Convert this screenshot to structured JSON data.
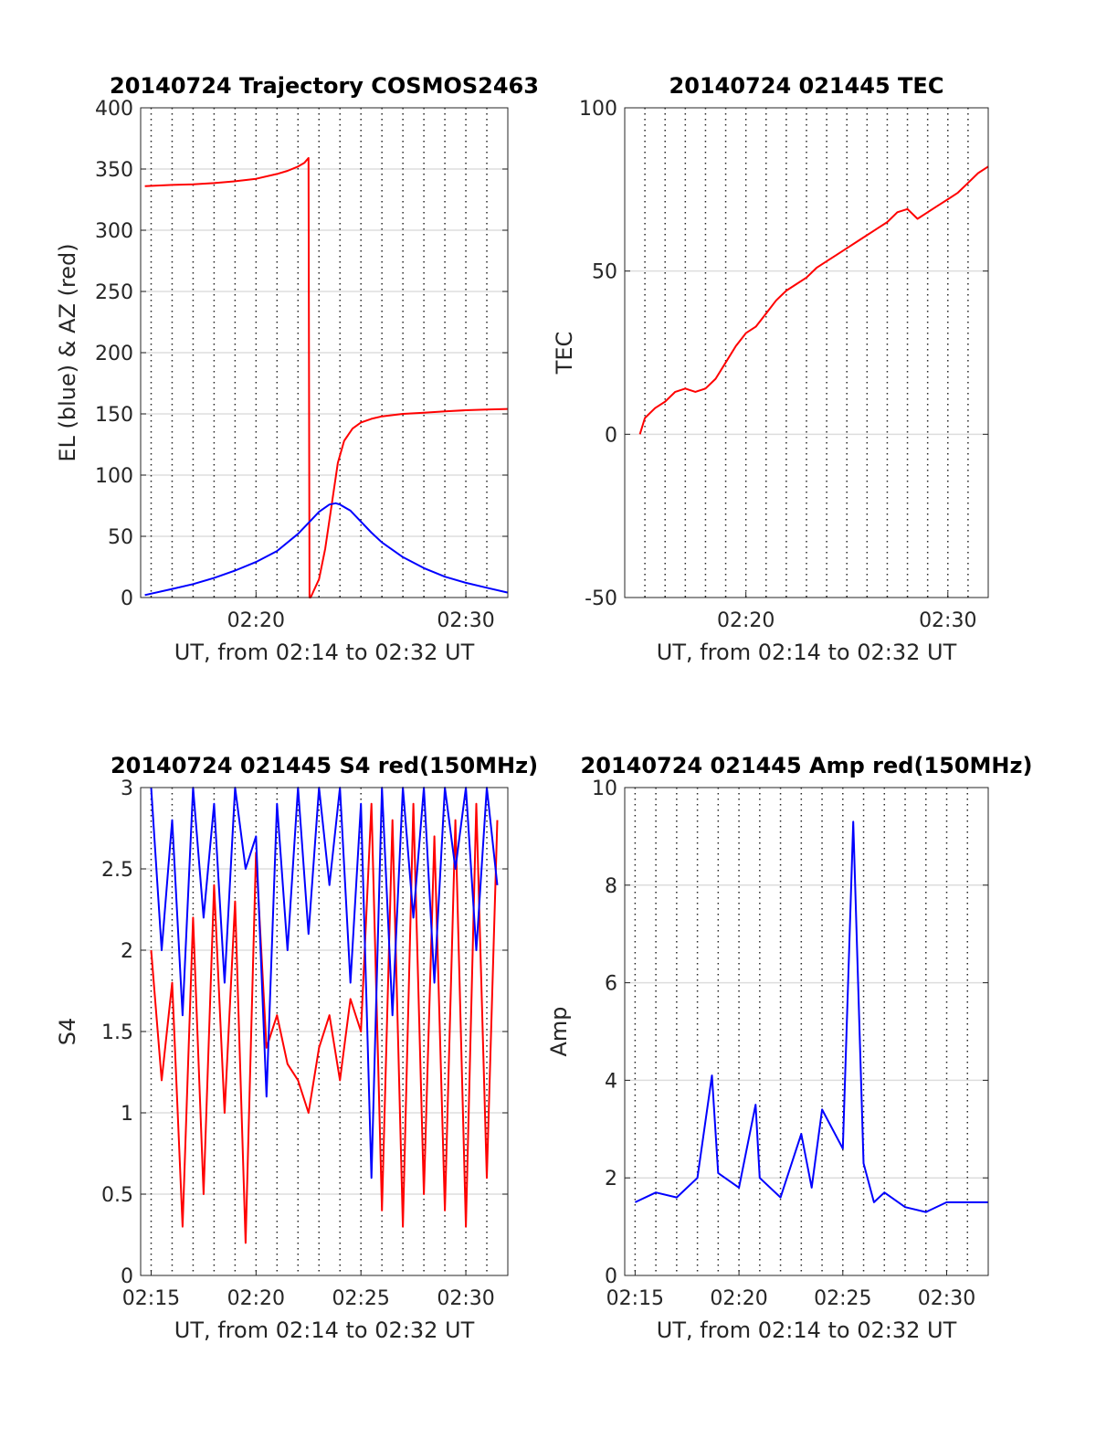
{
  "figure": {
    "background": "#ffffff"
  },
  "colors": {
    "red": "#ff0000",
    "blue": "#0000ff",
    "axis": "#262626",
    "text": "#262626",
    "grid": "#262626",
    "hgrid": "#dddddd"
  },
  "chart_data": [
    {
      "type": "line",
      "title": "20140724 Trajectory COSMOS2463",
      "xlabel": "UT, from 02:14 to 02:32 UT",
      "ylabel": "EL (blue) & AZ (red)",
      "xlim": [
        14.5,
        32
      ],
      "ylim": [
        0,
        400
      ],
      "xticks": [
        {
          "v": 20,
          "label": "02:20"
        },
        {
          "v": 30,
          "label": "02:30"
        }
      ],
      "yticks": [
        {
          "v": 0,
          "label": "0"
        },
        {
          "v": 50,
          "label": "50"
        },
        {
          "v": 100,
          "label": "100"
        },
        {
          "v": 150,
          "label": "150"
        },
        {
          "v": 200,
          "label": "200"
        },
        {
          "v": 250,
          "label": "250"
        },
        {
          "v": 300,
          "label": "300"
        },
        {
          "v": 350,
          "label": "350"
        },
        {
          "v": 400,
          "label": "400"
        }
      ],
      "grid": "dotted vertical every minute",
      "series": [
        {
          "color": "#ff0000",
          "x": [
            14.7,
            16,
            17,
            18,
            19,
            20,
            21,
            21.5,
            22,
            22.3,
            22.5,
            22.55,
            22.6,
            23,
            23.3,
            23.6,
            23.9,
            24.2,
            24.6,
            25,
            25.5,
            26,
            27,
            28,
            29,
            30,
            31,
            32
          ],
          "y": [
            336,
            337,
            337.5,
            338.5,
            340,
            342,
            346,
            348.5,
            352,
            355,
            359,
            0,
            0,
            15,
            40,
            75,
            110,
            128,
            138,
            143,
            146,
            148,
            150,
            151,
            152,
            153,
            153.5,
            154
          ]
        },
        {
          "color": "#0000ff",
          "x": [
            14.7,
            16,
            17,
            18,
            19,
            20,
            21,
            22,
            22.5,
            23,
            23.5,
            23.8,
            24,
            24.5,
            25,
            25.5,
            26,
            27,
            28,
            29,
            30,
            31,
            32
          ],
          "y": [
            2,
            7,
            11,
            16,
            22,
            29,
            38,
            52,
            61,
            70,
            76,
            77,
            76,
            71,
            62,
            53,
            45,
            33,
            24,
            17,
            12,
            8,
            4
          ]
        }
      ]
    },
    {
      "type": "line",
      "title": "20140724 021445 TEC",
      "xlabel": "UT, from 02:14 to 02:32 UT",
      "ylabel": "TEC",
      "xlim": [
        14,
        32
      ],
      "ylim": [
        -50,
        100
      ],
      "xticks": [
        {
          "v": 20,
          "label": "02:20"
        },
        {
          "v": 30,
          "label": "02:30"
        }
      ],
      "yticks": [
        {
          "v": -50,
          "label": "-50"
        },
        {
          "v": 0,
          "label": "0"
        },
        {
          "v": 50,
          "label": "50"
        },
        {
          "v": 100,
          "label": "100"
        }
      ],
      "grid": "dotted vertical every minute",
      "series": [
        {
          "color": "#ff0000",
          "x": [
            14.75,
            15,
            15.5,
            16,
            16.5,
            17,
            17.5,
            18,
            18.5,
            19,
            19.5,
            20,
            20.5,
            21,
            21.5,
            22,
            22.5,
            23,
            23.5,
            24,
            24.5,
            25,
            25.5,
            26,
            26.5,
            27,
            27.5,
            28,
            28.5,
            29,
            29.5,
            30,
            30.5,
            31,
            31.5,
            32
          ],
          "y": [
            0,
            5,
            8,
            10,
            13,
            14,
            13,
            14,
            17,
            22,
            27,
            31,
            33,
            37,
            41,
            44,
            46,
            48,
            51,
            53,
            55,
            57,
            59,
            61,
            63,
            65,
            68,
            69,
            66,
            68,
            70,
            72,
            74,
            77,
            80,
            82
          ]
        }
      ]
    },
    {
      "type": "line",
      "title": "20140724 021445 S4 red(150MHz)",
      "xlabel": "UT, from 02:14 to 02:32 UT",
      "ylabel": "S4",
      "xlim": [
        14.5,
        32
      ],
      "ylim": [
        0,
        3
      ],
      "xticks": [
        {
          "v": 15,
          "label": "02:15"
        },
        {
          "v": 20,
          "label": "02:20"
        },
        {
          "v": 25,
          "label": "02:25"
        },
        {
          "v": 30,
          "label": "02:30"
        }
      ],
      "yticks": [
        {
          "v": 0,
          "label": "0"
        },
        {
          "v": 0.5,
          "label": "0.5"
        },
        {
          "v": 1,
          "label": "1"
        },
        {
          "v": 1.5,
          "label": "1.5"
        },
        {
          "v": 2,
          "label": "2"
        },
        {
          "v": 2.5,
          "label": "2.5"
        },
        {
          "v": 3,
          "label": "3"
        }
      ],
      "grid": "dotted vertical every minute",
      "series": [
        {
          "color": "#ff0000",
          "x": [
            15,
            15.5,
            16,
            16.5,
            17,
            17.5,
            18,
            18.5,
            19,
            19.5,
            20,
            20.5,
            21,
            21.5,
            22,
            22.5,
            23,
            23.5,
            24,
            24.5,
            25,
            25.5,
            26,
            26.5,
            27,
            27.5,
            28,
            28.5,
            29,
            29.5,
            30,
            30.5,
            31,
            31.5
          ],
          "y": [
            2.0,
            1.2,
            1.8,
            0.3,
            2.2,
            0.5,
            2.4,
            1.0,
            2.3,
            0.2,
            2.6,
            1.4,
            1.6,
            1.3,
            1.2,
            1.0,
            1.4,
            1.6,
            1.2,
            1.7,
            1.5,
            2.9,
            0.4,
            2.8,
            0.3,
            2.9,
            0.5,
            2.7,
            0.4,
            2.8,
            0.3,
            2.9,
            0.6,
            2.8
          ]
        },
        {
          "color": "#0000ff",
          "x": [
            15,
            15.5,
            16,
            16.5,
            17,
            17.5,
            18,
            18.5,
            19,
            19.5,
            20,
            20.5,
            21,
            21.5,
            22,
            22.5,
            23,
            23.5,
            24,
            24.5,
            25,
            25.5,
            26,
            26.5,
            27,
            27.5,
            28,
            28.5,
            29,
            29.5,
            30,
            30.5,
            31,
            31.5
          ],
          "y": [
            3.0,
            2.0,
            2.8,
            1.6,
            3.0,
            2.2,
            2.9,
            1.8,
            3.0,
            2.5,
            2.7,
            1.1,
            2.9,
            2.0,
            3.0,
            2.1,
            3.0,
            2.4,
            3.0,
            1.8,
            2.9,
            0.6,
            3.0,
            1.6,
            3.0,
            2.2,
            3.0,
            1.8,
            3.0,
            2.5,
            3.0,
            2.0,
            3.0,
            2.4
          ]
        }
      ]
    },
    {
      "type": "line",
      "title": "20140724 021445 Amp red(150MHz)",
      "xlabel": "UT, from 02:14 to 02:32 UT",
      "ylabel": "Amp",
      "xlim": [
        14.5,
        32
      ],
      "ylim": [
        0,
        10
      ],
      "xticks": [
        {
          "v": 15,
          "label": "02:15"
        },
        {
          "v": 20,
          "label": "02:20"
        },
        {
          "v": 25,
          "label": "02:25"
        },
        {
          "v": 30,
          "label": "02:30"
        }
      ],
      "yticks": [
        {
          "v": 0,
          "label": "0"
        },
        {
          "v": 2,
          "label": "2"
        },
        {
          "v": 4,
          "label": "4"
        },
        {
          "v": 6,
          "label": "6"
        },
        {
          "v": 8,
          "label": "8"
        },
        {
          "v": 10,
          "label": "10"
        }
      ],
      "grid": "dotted vertical every minute",
      "series": [
        {
          "color": "#0000ff",
          "x": [
            15,
            16,
            17,
            18,
            18.7,
            19,
            20,
            20.8,
            21,
            22,
            23,
            23.5,
            24,
            25,
            25.5,
            26,
            26.5,
            27,
            28,
            29,
            30,
            31,
            32
          ],
          "y": [
            1.5,
            1.7,
            1.6,
            2.0,
            4.1,
            2.1,
            1.8,
            3.5,
            2.0,
            1.6,
            2.9,
            1.8,
            3.4,
            2.6,
            9.3,
            2.3,
            1.5,
            1.7,
            1.4,
            1.3,
            1.5,
            1.5,
            1.5
          ]
        }
      ]
    }
  ]
}
